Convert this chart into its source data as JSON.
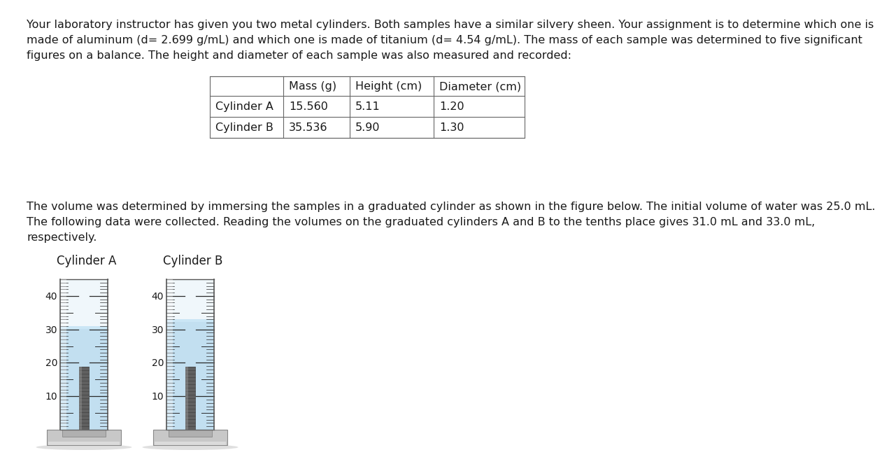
{
  "background_color": "#ffffff",
  "line1": "Your laboratory instructor has given you two metal cylinders. Both samples have a similar silvery sheen. Your assignment is to determine which one is",
  "line2": "made of aluminum (d= 2.699 g/mL) and which one is made of titanium (d= 4.54 g/mL). The mass of each sample was determined to five significant",
  "line3": "figures on a balance. The height and diameter of each sample was also measured and recorded:",
  "table_headers": [
    "",
    "Mass (g)",
    "Height (cm)",
    "Diameter (cm)"
  ],
  "table_rows": [
    [
      "Cylinder A",
      "15.560",
      "5.11",
      "1.20"
    ],
    [
      "Cylinder B",
      "35.536",
      "5.90",
      "1.30"
    ]
  ],
  "p2_line1": "The volume was determined by immersing the samples in a graduated cylinder as shown in the figure below. The initial volume of water was 25.0 mL.",
  "p2_line2": "The following data were collected. Reading the volumes on the graduated cylinders A and B to the tenths place gives 31.0 mL and 33.0 mL,",
  "p2_line3": "respectively.",
  "cyl_a_label": "Cylinder A",
  "cyl_b_label": "Cylinder B",
  "water_color": "#c2dff0",
  "water_color_upper": "#daeef8",
  "glass_bg": "#eef6fb",
  "cyl_a_water_level": 31.0,
  "cyl_b_water_level": 33.0,
  "grad_min": 0,
  "grad_max": 45,
  "tick_labels": [
    10,
    20,
    30,
    40
  ],
  "font_size_body": 11.5,
  "font_size_table": 11.5,
  "font_size_cyl_label": 12,
  "font_size_tick": 10
}
